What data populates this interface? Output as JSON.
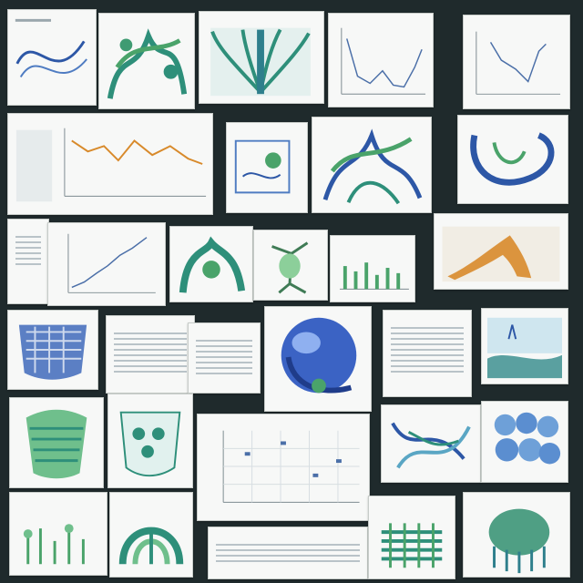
{
  "board": {
    "cards": [
      {
        "id": "c1",
        "kind": "curves",
        "caption": ""
      },
      {
        "id": "c2",
        "kind": "organic-green",
        "caption": ""
      },
      {
        "id": "c3",
        "kind": "radial-teal",
        "caption": ""
      },
      {
        "id": "c4",
        "kind": "line-plot",
        "caption": ""
      },
      {
        "id": "c5",
        "kind": "line-plot",
        "caption": ""
      },
      {
        "id": "c6",
        "kind": "orange-line-chart",
        "caption": ""
      },
      {
        "id": "c7",
        "kind": "diagram",
        "caption": ""
      },
      {
        "id": "c8",
        "kind": "branching-blue-green",
        "caption": ""
      },
      {
        "id": "c9",
        "kind": "curled-blue",
        "caption": ""
      },
      {
        "id": "c10",
        "kind": "text-doc",
        "caption": ""
      },
      {
        "id": "c11",
        "kind": "rising-line",
        "caption": ""
      },
      {
        "id": "c12",
        "kind": "organic-green",
        "caption": ""
      },
      {
        "id": "c13",
        "kind": "green-figure",
        "caption": ""
      },
      {
        "id": "c14",
        "kind": "green-bars",
        "caption": ""
      },
      {
        "id": "c15",
        "kind": "orange-shape",
        "caption": ""
      },
      {
        "id": "c16",
        "kind": "blue-grid-blob",
        "caption": ""
      },
      {
        "id": "c17",
        "kind": "text-doc",
        "caption": ""
      },
      {
        "id": "c18",
        "kind": "blue-sphere",
        "caption": ""
      },
      {
        "id": "c19",
        "kind": "text-doc",
        "caption": ""
      },
      {
        "id": "c20",
        "kind": "landscape",
        "caption": ""
      },
      {
        "id": "c21",
        "kind": "green-stack",
        "caption": ""
      },
      {
        "id": "c22",
        "kind": "teal-blocks",
        "caption": ""
      },
      {
        "id": "c23",
        "kind": "grid-scatter",
        "caption": ""
      },
      {
        "id": "c24",
        "kind": "blue-tangle",
        "caption": ""
      },
      {
        "id": "c25",
        "kind": "blue-bubbles",
        "caption": ""
      },
      {
        "id": "c26",
        "kind": "plants",
        "caption": ""
      },
      {
        "id": "c27",
        "kind": "green-arch",
        "caption": ""
      },
      {
        "id": "c28",
        "kind": "text-doc",
        "caption": ""
      },
      {
        "id": "c29",
        "kind": "green-ribs",
        "caption": ""
      },
      {
        "id": "c30",
        "kind": "green-dome",
        "caption": ""
      }
    ]
  },
  "colors": {
    "background": "#1f2a2c",
    "card": "#f7f8f7",
    "teal": "#2e8f7a",
    "green": "#4aa36a",
    "blue": "#2d57a6",
    "orange": "#d88a2b",
    "grey_text": "#9aa7ad"
  }
}
